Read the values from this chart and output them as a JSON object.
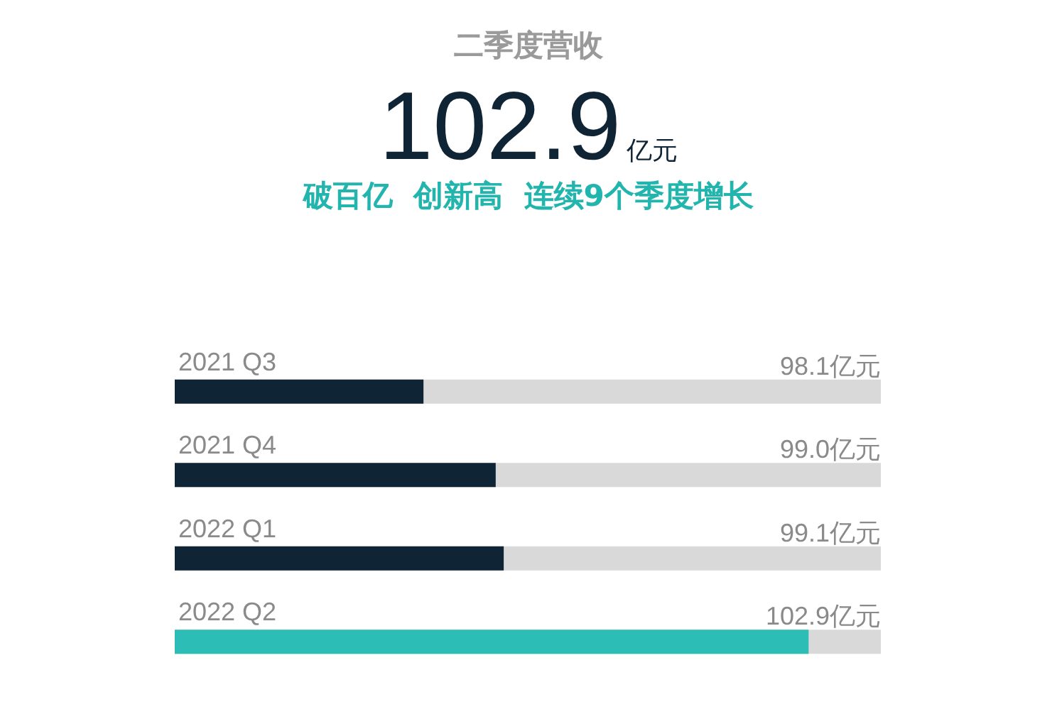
{
  "chart_data": {
    "type": "bar",
    "orientation": "horizontal",
    "title": "二季度营收",
    "subtitle": "破百亿  创新高  连续9个季度增长",
    "annotations": [
      "102.9亿元"
    ],
    "categories": [
      "2021 Q3",
      "2021 Q4",
      "2022 Q1",
      "2022 Q2"
    ],
    "values": [
      98.1,
      99.0,
      99.1,
      102.9
    ],
    "colors": [
      "#0f2536",
      "#0f2536",
      "#0f2536",
      "#2bbdb6"
    ],
    "value_labels": [
      "98.1亿元",
      "99.0亿元",
      "99.1亿元",
      "102.9亿元"
    ],
    "xlim": [
      95,
      103.8
    ],
    "tick_labels": "y"
  }
}
